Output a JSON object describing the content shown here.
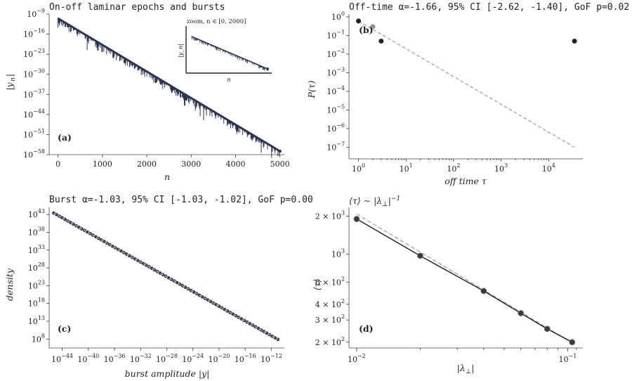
{
  "chart_data": [
    {
      "id": "a",
      "type": "line",
      "title": "On-off laminar epochs and bursts",
      "panel_label": "(a)",
      "xlabel": "n",
      "ylabel": "|y_n|",
      "xlim": [
        -200,
        5100
      ],
      "ylim_log10": [
        -58,
        -9
      ],
      "x_ticks": [
        0,
        1000,
        2000,
        3000,
        4000,
        5000
      ],
      "y_ticks_log10": [
        -9,
        -16,
        -23,
        -30,
        -37,
        -44,
        -51,
        -58
      ],
      "series": [
        {
          "x": [
            0,
            5000
          ],
          "y_log10": [
            -10.5,
            -56.8
          ]
        }
      ],
      "line_color": "#2e3550",
      "inset": {
        "label": "zoom, n ∈ [0, 2000]",
        "xlabel": "n",
        "ylabel": "|y_n|"
      }
    },
    {
      "id": "b",
      "type": "scatter",
      "title": "Off-time α=-1.66, 95% CI [-2.62, -1.40], GoF p=0.02",
      "panel_label": "(b)",
      "xlabel": "off time τ",
      "ylabel": "P(τ)",
      "scale": "log-log",
      "xlim_log10": [
        -0.2,
        4.72
      ],
      "ylim_log10": [
        -7.4,
        0.15
      ],
      "x_ticks_log10": [
        0,
        1,
        2,
        3,
        4
      ],
      "y_ticks_log10": [
        0,
        -1,
        -2,
        -3,
        -4,
        -5,
        -6,
        -7
      ],
      "points": [
        {
          "x": 1,
          "y": 0.6
        },
        {
          "x": 2,
          "y": 0.3
        },
        {
          "x": 3,
          "y": 0.05
        },
        {
          "x": 35000,
          "y": 0.05
        }
      ],
      "fit_line": {
        "x": [
          1,
          35000
        ],
        "y": [
          0.6,
          1e-07
        ],
        "style": "dashed"
      }
    },
    {
      "id": "c",
      "type": "scatter",
      "title": "Burst α=-1.03, 95% CI [-1.03, -1.02], GoF p=0.00",
      "panel_label": "(c)",
      "xlabel": "burst amplitude |y|",
      "ylabel": "density",
      "scale": "log-log",
      "xlim_log10": [
        -46.0,
        -10.0
      ],
      "ylim_log10": [
        5.5,
        45.0
      ],
      "x_ticks_log10": [
        -44,
        -40,
        -36,
        -32,
        -28,
        -24,
        -20,
        -16,
        -12
      ],
      "y_ticks_log10": [
        43,
        38,
        33,
        28,
        23,
        18,
        13,
        8
      ],
      "series": [
        {
          "x_log10": [
            -45.3,
            -11.0
          ],
          "y_log10": [
            43.4,
            7.9
          ]
        }
      ],
      "fit_line": {
        "x_log10": [
          -45.3,
          -11.0
        ],
        "y_log10": [
          43.4,
          7.9
        ],
        "style": "dashed"
      }
    },
    {
      "id": "d",
      "type": "line",
      "title": "⟨τ⟩ ∼ |λ⊥|^-1",
      "panel_label": "(d)",
      "xlabel": "|λ⊥|",
      "ylabel": "⟨τ⟩",
      "scale": "log-log",
      "xlim": [
        0.0092,
        0.118
      ],
      "ylim": [
        180,
        2350
      ],
      "x_ticks": [
        0.01,
        0.1
      ],
      "x_tick_labels": [
        "10^-2",
        "10^-1"
      ],
      "y_ticks": [
        2000,
        1000,
        600,
        400,
        300,
        200
      ],
      "y_tick_labels": [
        "2 × 10^3",
        "10^3",
        "6 × 10^2",
        "4 × 10^2",
        "3 × 10^2",
        "2 × 10^2"
      ],
      "series": [
        {
          "x": [
            0.01,
            0.02,
            0.04,
            0.06,
            0.08,
            0.105
          ],
          "y": [
            1900,
            970,
            510,
            340,
            255,
            200
          ]
        }
      ],
      "fit_line": {
        "x": [
          0.01,
          0.105
        ],
        "y": [
          2080,
          198
        ],
        "style": "dashed"
      }
    }
  ]
}
